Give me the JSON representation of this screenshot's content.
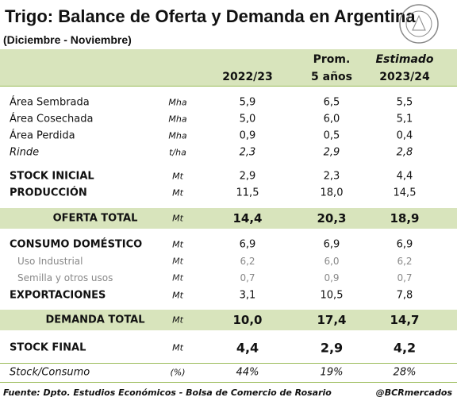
{
  "header": {
    "title": "Trigo: Balance de Oferta y Demanda en Argentina",
    "subtitle": "(Diciembre - Noviembre)"
  },
  "table": {
    "columns": [
      [
        "2022/23"
      ],
      [
        "Prom.",
        "5 años"
      ],
      [
        "Estimado",
        "2023/24"
      ]
    ],
    "rows": [
      {
        "label": "Área Sembrada",
        "unit": "Mha",
        "values": [
          "5,9",
          "6,5",
          "5,5"
        ]
      },
      {
        "label": "Área Cosechada",
        "unit": "Mha",
        "values": [
          "5,0",
          "6,0",
          "5,1"
        ]
      },
      {
        "label": "Área Perdida",
        "unit": "Mha",
        "values": [
          "0,9",
          "0,5",
          "0,4"
        ]
      },
      {
        "label": "Rinde",
        "unit": "t/ha",
        "values": [
          "2,3",
          "2,9",
          "2,8"
        ]
      },
      {
        "label": "STOCK INICIAL",
        "unit": "Mt",
        "values": [
          "2,9",
          "2,3",
          "4,4"
        ]
      },
      {
        "label": "PRODUCCIÓN",
        "unit": "Mt",
        "values": [
          "11,5",
          "18,0",
          "14,5"
        ]
      },
      {
        "label": "OFERTA TOTAL",
        "unit": "Mt",
        "values": [
          "14,4",
          "20,3",
          "18,9"
        ]
      },
      {
        "label": "CONSUMO DOMÉSTICO",
        "unit": "Mt",
        "values": [
          "6,9",
          "6,9",
          "6,9"
        ]
      },
      {
        "label": "Uso Industrial",
        "unit": "Mt",
        "values": [
          "6,2",
          "6,0",
          "6,2"
        ]
      },
      {
        "label": "Semilla y otros usos",
        "unit": "Mt",
        "values": [
          "0,7",
          "0,9",
          "0,7"
        ]
      },
      {
        "label": "EXPORTACIONES",
        "unit": "Mt",
        "values": [
          "3,1",
          "10,5",
          "7,8"
        ]
      },
      {
        "label": "DEMANDA TOTAL",
        "unit": "Mt",
        "values": [
          "10,0",
          "17,4",
          "14,7"
        ]
      },
      {
        "label": "STOCK FINAL",
        "unit": "Mt",
        "values": [
          "4,4",
          "2,9",
          "4,2"
        ]
      },
      {
        "label": "Stock/Consumo",
        "unit": "(%)",
        "values": [
          "44%",
          "19%",
          "28%"
        ]
      }
    ]
  },
  "footer": {
    "source": "Fuente: Dpto. Estudios Económicos - Bolsa de Comercio de Rosario",
    "handle": "@BCRmercados"
  }
}
